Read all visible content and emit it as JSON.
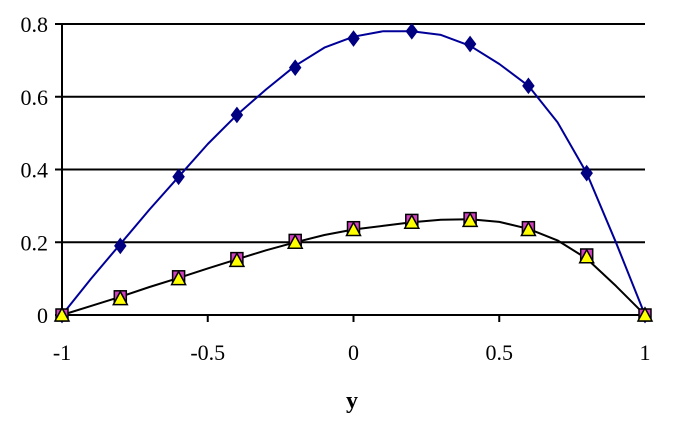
{
  "chart_data": {
    "type": "scatter",
    "title": "",
    "xlabel": "y",
    "ylabel": "",
    "xlim": [
      -1,
      1
    ],
    "ylim": [
      0,
      0.8
    ],
    "xticks": [
      -1,
      -0.5,
      0,
      0.5,
      1
    ],
    "xtick_labels": [
      "-1",
      "-0.5",
      "0",
      "0.5",
      "1"
    ],
    "yticks": [
      0,
      0.2,
      0.4,
      0.6,
      0.8
    ],
    "ytick_labels": [
      "0",
      "0.2",
      "0.4",
      "0.6",
      "0.8"
    ],
    "grid": "horizontal",
    "legend": "none",
    "series": [
      {
        "marker": "diamond",
        "color": "#000080",
        "x": [
          -1,
          -0.8,
          -0.6,
          -0.4,
          -0.2,
          0,
          0.2,
          0.4,
          0.6,
          0.8,
          1
        ],
        "y": [
          0,
          0.19,
          0.38,
          0.55,
          0.68,
          0.76,
          0.78,
          0.745,
          0.63,
          0.39,
          0
        ]
      },
      {
        "marker": "square",
        "color": "#d040c0",
        "x": [
          -1,
          -0.8,
          -0.6,
          -0.4,
          -0.2,
          0,
          0.2,
          0.4,
          0.6,
          0.8,
          1
        ],
        "y": [
          0,
          0.05,
          0.105,
          0.155,
          0.205,
          0.24,
          0.26,
          0.265,
          0.24,
          0.165,
          0
        ]
      },
      {
        "marker": "triangle",
        "color": "#ffff00",
        "x": [
          -1,
          -0.8,
          -0.6,
          -0.4,
          -0.2,
          0,
          0.2,
          0.4,
          0.6,
          0.8,
          1
        ],
        "y": [
          0,
          0.045,
          0.1,
          0.15,
          0.2,
          0.235,
          0.255,
          0.26,
          0.235,
          0.16,
          0
        ]
      }
    ],
    "curves": [
      {
        "color": "#000099",
        "x": [
          -1,
          -0.9,
          -0.8,
          -0.7,
          -0.6,
          -0.5,
          -0.4,
          -0.3,
          -0.2,
          -0.1,
          0,
          0.1,
          0.2,
          0.3,
          0.4,
          0.5,
          0.6,
          0.7,
          0.8,
          0.9,
          1
        ],
        "y": [
          0,
          0.1,
          0.195,
          0.29,
          0.38,
          0.47,
          0.55,
          0.62,
          0.685,
          0.735,
          0.765,
          0.78,
          0.78,
          0.77,
          0.74,
          0.69,
          0.63,
          0.53,
          0.39,
          0.2,
          0
        ]
      },
      {
        "color": "#000000",
        "x": [
          -1,
          -0.9,
          -0.8,
          -0.7,
          -0.6,
          -0.5,
          -0.4,
          -0.3,
          -0.2,
          -0.1,
          0,
          0.1,
          0.2,
          0.3,
          0.4,
          0.5,
          0.6,
          0.7,
          0.8,
          0.9,
          1
        ],
        "y": [
          0,
          0.025,
          0.05,
          0.077,
          0.102,
          0.128,
          0.153,
          0.178,
          0.2,
          0.22,
          0.235,
          0.245,
          0.255,
          0.262,
          0.263,
          0.256,
          0.237,
          0.205,
          0.155,
          0.08,
          0
        ]
      }
    ]
  }
}
